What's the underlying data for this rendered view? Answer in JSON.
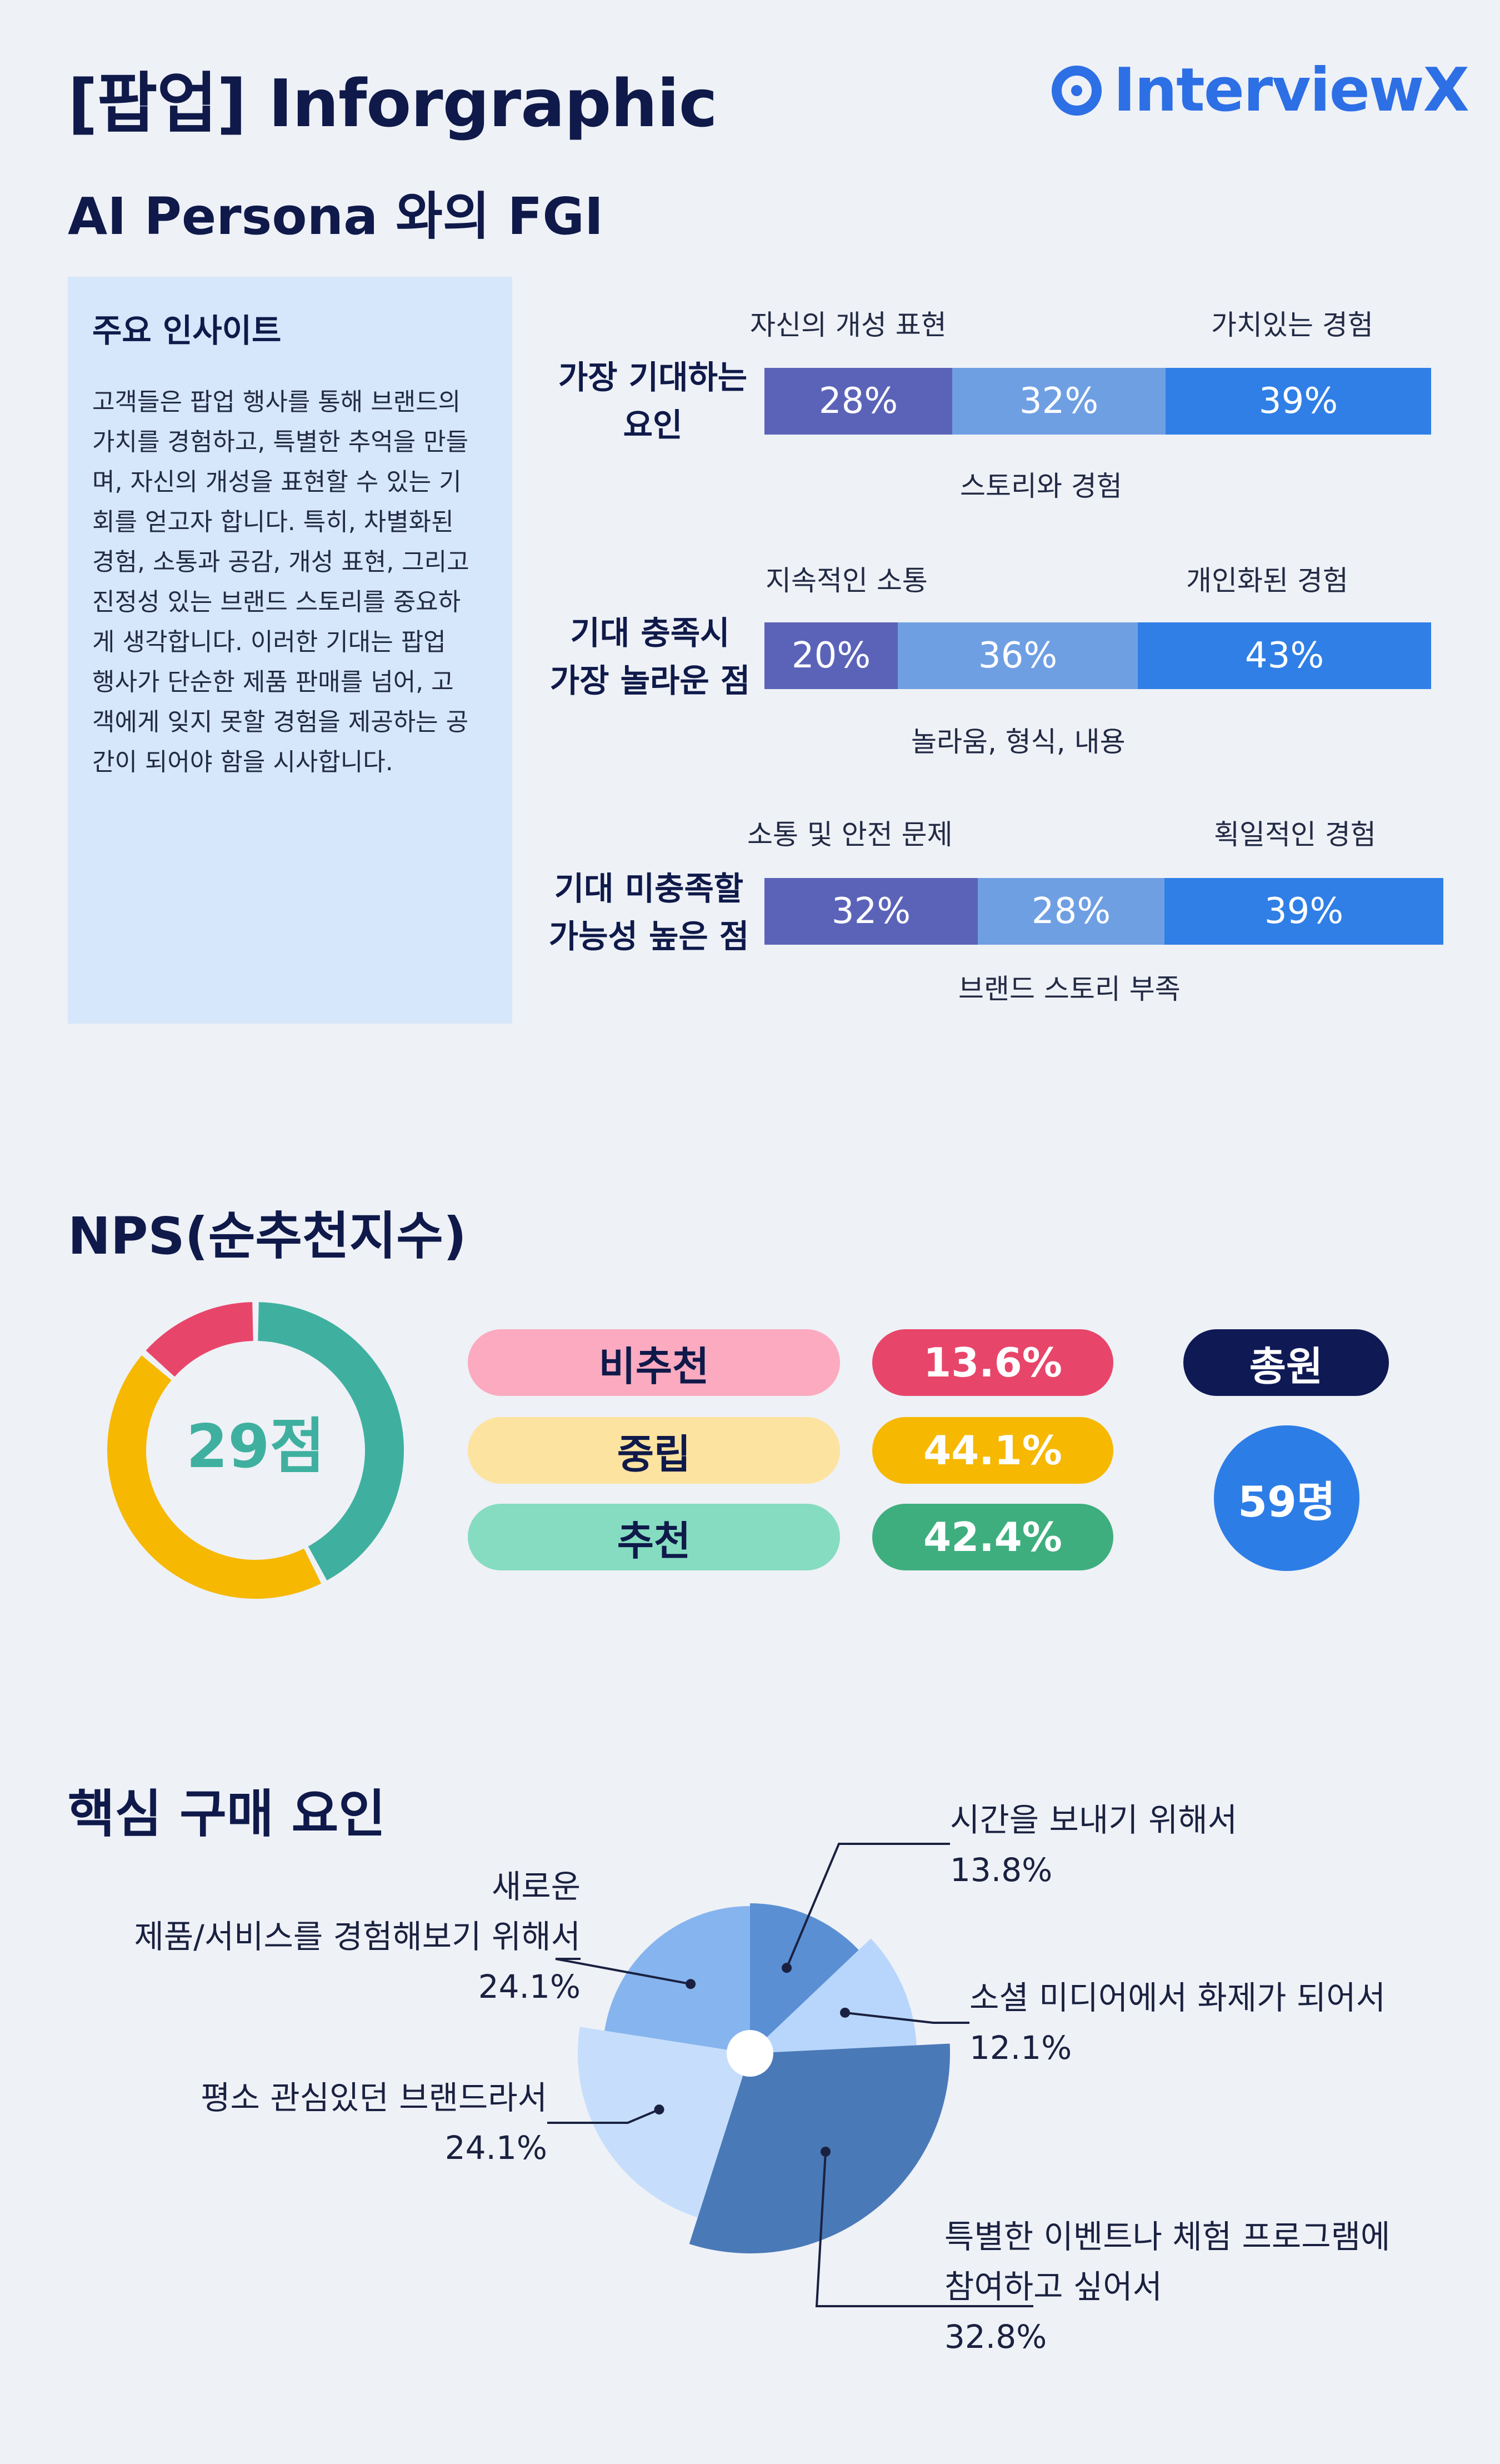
{
  "header": {
    "title": "[팝업] Inforgraphic",
    "brand": "InterviewX",
    "subtitle": "AI Persona 와의 FGI"
  },
  "insight": {
    "title": "주요 인사이트",
    "lines": [
      "고객들은 팝업 행사를 통해 브랜드의",
      "가치를 경험하고, 특별한 추억을 만들",
      "며, 자신의 개성을 표현할 수 있는 기",
      "회를 얻고자 합니다. 특히, 차별화된",
      "경험, 소통과 공감, 개성 표현, 그리고",
      "진정성 있는 브랜드 스토리를 중요하",
      "게 생각합니다. 이러한 기대는 팝업",
      "행사가 단순한 제품 판매를 넘어, 고",
      "객에게 잊지 못할 경험을 제공하는 공",
      "간이 되어야 함을 시사합니다."
    ]
  },
  "colors": {
    "seg1": "#5b63b8",
    "seg2": "#6f9fe3",
    "seg3": "#2f7fe6",
    "brand": "#2d6fe5"
  },
  "chart_data": [
    {
      "type": "bar",
      "rows": [
        {
          "label_l1": "가장 기대하는",
          "label_l2": "요인",
          "segments": [
            {
              "name": "자신의 개성 표현",
              "value": 28,
              "text": "28%"
            },
            {
              "name": "스토리와 경험",
              "value": 32,
              "text": "32%"
            },
            {
              "name": "가치있는 경험",
              "value": 39,
              "text": "39%"
            }
          ]
        },
        {
          "label_l1": "기대 충족시",
          "label_l2": "가장 놀라운 점",
          "segments": [
            {
              "name": "지속적인 소통",
              "value": 20,
              "text": "20%"
            },
            {
              "name": "놀라움, 형식, 내용",
              "value": 36,
              "text": "36%"
            },
            {
              "name": "개인화된 경험",
              "value": 43,
              "text": "43%"
            }
          ]
        },
        {
          "label_l1": "기대 미충족할",
          "label_l2": "가능성 높은 점",
          "segments": [
            {
              "name": "소통 및 안전 문제",
              "value": 32,
              "text": "32%"
            },
            {
              "name": "브랜드 스토리 부족",
              "value": 28,
              "text": "28%"
            },
            {
              "name": "획일적인 경험",
              "value": 39,
              "text": "39%"
            }
          ]
        }
      ]
    },
    {
      "type": "pie",
      "title": "NPS(순추천지수)",
      "center_label": "29점",
      "slices": [
        {
          "name": "추천",
          "value": 42.4,
          "text": "42.4%",
          "color": "#3fb0a0"
        },
        {
          "name": "중립",
          "value": 44.1,
          "text": "44.1%",
          "color": "#f6b800"
        },
        {
          "name": "비추천",
          "value": 13.6,
          "text": "13.6%",
          "color": "#e8456a"
        }
      ],
      "pill_colors": {
        "비추천": "#fbaac0",
        "중립": "#fde3a0",
        "추천": "#86dcc0"
      },
      "value_colors": {
        "비추천": "#e8456a",
        "중립": "#f6b800",
        "추천": "#3fae7e"
      },
      "total_label": "총원",
      "total_value": "59명"
    },
    {
      "type": "pie",
      "title": "핵심 구매 요인",
      "slices": [
        {
          "name": "시간을 보내기 위해서",
          "value": 13.8,
          "text": "13.8%",
          "color": "#5a8fd4"
        },
        {
          "name": "소셜 미디어에서 화제가 되어서",
          "value": 12.1,
          "text": "12.1%",
          "color": "#b8d6fb"
        },
        {
          "name": "특별한 이벤트나 체험 프로그램에 참여하고 싶어서",
          "value": 32.8,
          "text": "32.8%",
          "color": "#4a79b8"
        },
        {
          "name": "평소 관심있던 브랜드라서",
          "value": 24.1,
          "text": "24.1%",
          "color": "#c6defc"
        },
        {
          "name": "새로운 제품/서비스를 경험해보기 위해서",
          "value": 24.1,
          "text": "24.1%",
          "color": "#86b4ee"
        }
      ],
      "labels": {
        "s0": [
          "시간을 보내기 위해서",
          "13.8%"
        ],
        "s1": [
          "소셜 미디어에서 화제가 되어서",
          "12.1%"
        ],
        "s2": [
          "특별한 이벤트나 체험 프로그램에",
          "참여하고 싶어서",
          "32.8%"
        ],
        "s3": [
          "평소 관심있던 브랜드라서",
          "24.1%"
        ],
        "s4": [
          "새로운",
          "제품/서비스를 경험해보기 위해서",
          "24.1%"
        ]
      }
    }
  ]
}
